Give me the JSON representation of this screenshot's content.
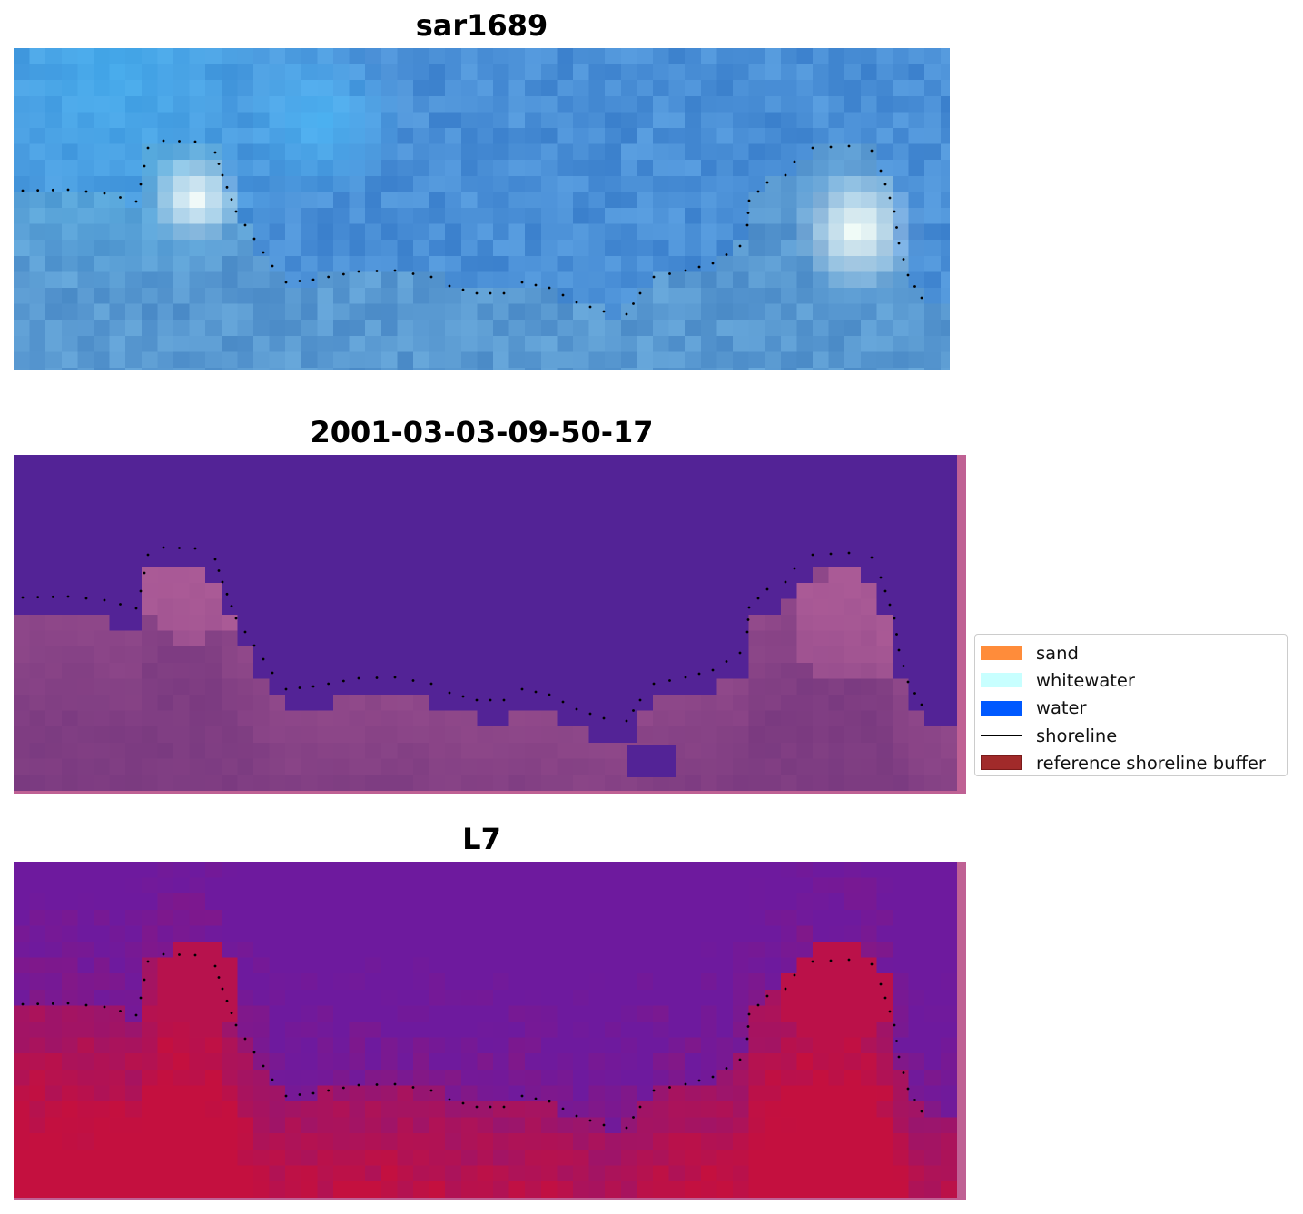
{
  "panels": [
    {
      "id": "rgb",
      "title": "sar1689"
    },
    {
      "id": "classified",
      "title": "2001-03-03-09-50-17"
    },
    {
      "id": "index",
      "title": "L7"
    }
  ],
  "legend": {
    "items": [
      {
        "label": "sand",
        "color": "#ff8c3a",
        "kind": "patch"
      },
      {
        "label": "whitewater",
        "color": "#c8ffff",
        "kind": "patch"
      },
      {
        "label": "water",
        "color": "#0059ff",
        "kind": "patch"
      },
      {
        "label": "shoreline",
        "color": "#000000",
        "kind": "line"
      },
      {
        "label": "reference shoreline buffer",
        "color": "#a12a2a",
        "kind": "patch"
      }
    ]
  },
  "colors": {
    "classified_water": "#532396",
    "classified_land": "#7a3a80",
    "buffer": "#bf6194",
    "rgb_base": "#4a8fd6",
    "index_low": "#6e1a9e",
    "index_high": "#c4103f"
  }
}
